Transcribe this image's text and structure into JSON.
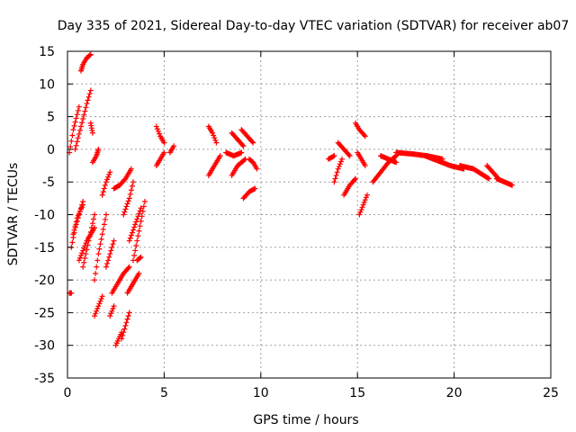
{
  "chart_data": {
    "type": "scatter",
    "title": "Day 335 of 2021, Sidereal Day-to-day VTEC variation (SDTVAR) for receiver ab07",
    "xlabel": "GPS time / hours",
    "ylabel": "SDTVAR / TECUs",
    "xlim": [
      0,
      25
    ],
    "ylim": [
      -35,
      15
    ],
    "xticks": [
      0,
      5,
      10,
      15,
      20,
      25
    ],
    "yticks": [
      -35,
      -30,
      -25,
      -20,
      -15,
      -10,
      -5,
      0,
      5,
      10,
      15
    ],
    "grid": true,
    "marker": "+",
    "series": [
      {
        "name": "SDTVAR",
        "color": "#ff0000",
        "segments": [
          {
            "x": [
              0.1,
              0.3,
              0.6
            ],
            "y": [
              -0.5,
              3.0,
              6.5
            ]
          },
          {
            "x": [
              0.2,
              0.4,
              0.8
            ],
            "y": [
              -15.0,
              -12.0,
              -8.0
            ]
          },
          {
            "x": [
              0.4,
              0.7,
              1.0,
              1.2
            ],
            "y": [
              0.0,
              3.5,
              7.0,
              9.0
            ]
          },
          {
            "x": [
              0.7,
              0.8,
              1.0
            ],
            "y": [
              12.0,
              13.0,
              14.0
            ]
          },
          {
            "x": [
              1.0,
              1.2
            ],
            "y": [
              14.0,
              14.5
            ]
          },
          {
            "x": [
              0.6,
              1.0,
              1.4
            ],
            "y": [
              -17.0,
              -14.0,
              -12.0
            ]
          },
          {
            "x": [
              1.2,
              1.3
            ],
            "y": [
              4.0,
              2.5
            ]
          },
          {
            "x": [
              0.1,
              0.2
            ],
            "y": [
              -22.0,
              -22.0
            ]
          },
          {
            "x": [
              0.3,
              0.5,
              0.8
            ],
            "y": [
              -13.0,
              -10.5,
              -8.5
            ]
          },
          {
            "x": [
              0.8,
              1.1,
              1.4
            ],
            "y": [
              -18.0,
              -14.0,
              -10.0
            ]
          },
          {
            "x": [
              1.4,
              1.6,
              1.8,
              2.0
            ],
            "y": [
              -20.0,
              -16.0,
              -13.0,
              -10.0
            ]
          },
          {
            "x": [
              1.3,
              1.5,
              1.6
            ],
            "y": [
              -2.0,
              -1.0,
              0.0
            ]
          },
          {
            "x": [
              1.4,
              1.6,
              1.8
            ],
            "y": [
              -25.5,
              -24.0,
              -22.5
            ]
          },
          {
            "x": [
              1.8,
              2.0,
              2.2
            ],
            "y": [
              -7.0,
              -5.0,
              -3.5
            ]
          },
          {
            "x": [
              2.0,
              2.2,
              2.4
            ],
            "y": [
              -18.0,
              -16.0,
              -14.0
            ]
          },
          {
            "x": [
              2.2,
              2.4
            ],
            "y": [
              -25.5,
              -24.0
            ]
          },
          {
            "x": [
              2.3,
              2.6,
              2.9,
              3.2
            ],
            "y": [
              -22.0,
              -20.5,
              -19.0,
              -18.0
            ]
          },
          {
            "x": [
              2.5,
              2.8
            ],
            "y": [
              -30.0,
              -28.0
            ]
          },
          {
            "x": [
              2.8,
              3.0,
              3.2
            ],
            "y": [
              -29.0,
              -27.0,
              -25.0
            ]
          },
          {
            "x": [
              2.4,
              2.7,
              3.0,
              3.3
            ],
            "y": [
              -6.0,
              -5.5,
              -4.5,
              -3.0
            ]
          },
          {
            "x": [
              2.9,
              3.2,
              3.4
            ],
            "y": [
              -10.0,
              -7.5,
              -5.0
            ]
          },
          {
            "x": [
              3.2,
              3.5,
              3.8
            ],
            "y": [
              -14.0,
              -11.5,
              -9.0
            ]
          },
          {
            "x": [
              3.4,
              3.6,
              3.8,
              4.0
            ],
            "y": [
              -17.0,
              -14.0,
              -11.0,
              -8.0
            ]
          },
          {
            "x": [
              3.1,
              3.4,
              3.7
            ],
            "y": [
              -22.0,
              -20.5,
              -19.0
            ]
          },
          {
            "x": [
              3.6,
              3.8
            ],
            "y": [
              -17.0,
              -16.5
            ]
          },
          {
            "x": [
              4.6,
              4.8,
              5.0
            ],
            "y": [
              -2.5,
              -1.5,
              -0.5
            ]
          },
          {
            "x": [
              4.6,
              4.8,
              5.0
            ],
            "y": [
              3.5,
              2.0,
              1.0
            ]
          },
          {
            "x": [
              5.3,
              5.5
            ],
            "y": [
              -0.5,
              0.5
            ]
          },
          {
            "x": [
              7.3,
              7.5,
              7.7
            ],
            "y": [
              3.5,
              2.5,
              1.0
            ]
          },
          {
            "x": [
              7.3,
              7.6,
              7.9
            ],
            "y": [
              -4.0,
              -2.5,
              -1.0
            ]
          },
          {
            "x": [
              8.2,
              8.6,
              9.0
            ],
            "y": [
              -0.5,
              -1.0,
              -0.5
            ]
          },
          {
            "x": [
              8.5,
              8.8,
              9.1
            ],
            "y": [
              2.5,
              1.5,
              0.5
            ]
          },
          {
            "x": [
              8.5,
              8.8,
              9.2
            ],
            "y": [
              -4.0,
              -2.5,
              -1.5
            ]
          },
          {
            "x": [
              9.0,
              9.3,
              9.6
            ],
            "y": [
              3.0,
              2.0,
              1.0
            ]
          },
          {
            "x": [
              9.1,
              9.4,
              9.7
            ],
            "y": [
              -7.5,
              -6.5,
              -6.0
            ]
          },
          {
            "x": [
              9.4,
              9.6,
              9.8
            ],
            "y": [
              -1.5,
              -2.0,
              -3.0
            ]
          },
          {
            "x": [
              13.5,
              13.8
            ],
            "y": [
              -1.5,
              -1.0
            ]
          },
          {
            "x": [
              13.8,
              14.0,
              14.2
            ],
            "y": [
              -5.0,
              -3.0,
              -1.5
            ]
          },
          {
            "x": [
              14.0,
              14.3,
              14.6
            ],
            "y": [
              1.0,
              0.0,
              -1.0
            ]
          },
          {
            "x": [
              14.3,
              14.6,
              14.9
            ],
            "y": [
              -7.0,
              -5.5,
              -4.5
            ]
          },
          {
            "x": [
              14.9,
              15.1,
              15.4
            ],
            "y": [
              4.0,
              3.0,
              2.0
            ]
          },
          {
            "x": [
              15.0,
              15.2,
              15.4
            ],
            "y": [
              -0.5,
              -1.5,
              -2.5
            ]
          },
          {
            "x": [
              15.1,
              15.3,
              15.5
            ],
            "y": [
              -10.0,
              -8.5,
              -7.0
            ]
          },
          {
            "x": [
              15.8,
              16.2,
              16.6,
              17.0
            ],
            "y": [
              -5.0,
              -3.5,
              -2.0,
              -1.0
            ]
          },
          {
            "x": [
              16.2,
              16.6,
              17.0
            ],
            "y": [
              -1.0,
              -1.5,
              -2.0
            ]
          },
          {
            "x": [
              17.0,
              17.8,
              18.6,
              19.4
            ],
            "y": [
              -0.5,
              -0.7,
              -1.0,
              -1.5
            ]
          },
          {
            "x": [
              18.5,
              19.2,
              19.8,
              20.5
            ],
            "y": [
              -1.0,
              -1.8,
              -2.5,
              -3.0
            ]
          },
          {
            "x": [
              20.3,
              21.0,
              21.8
            ],
            "y": [
              -2.5,
              -3.0,
              -4.5
            ]
          },
          {
            "x": [
              21.7,
              22.0,
              22.3
            ],
            "y": [
              -2.5,
              -3.5,
              -4.5
            ]
          },
          {
            "x": [
              22.2,
              22.6,
              23.0
            ],
            "y": [
              -4.5,
              -5.0,
              -5.5
            ]
          }
        ]
      }
    ]
  }
}
